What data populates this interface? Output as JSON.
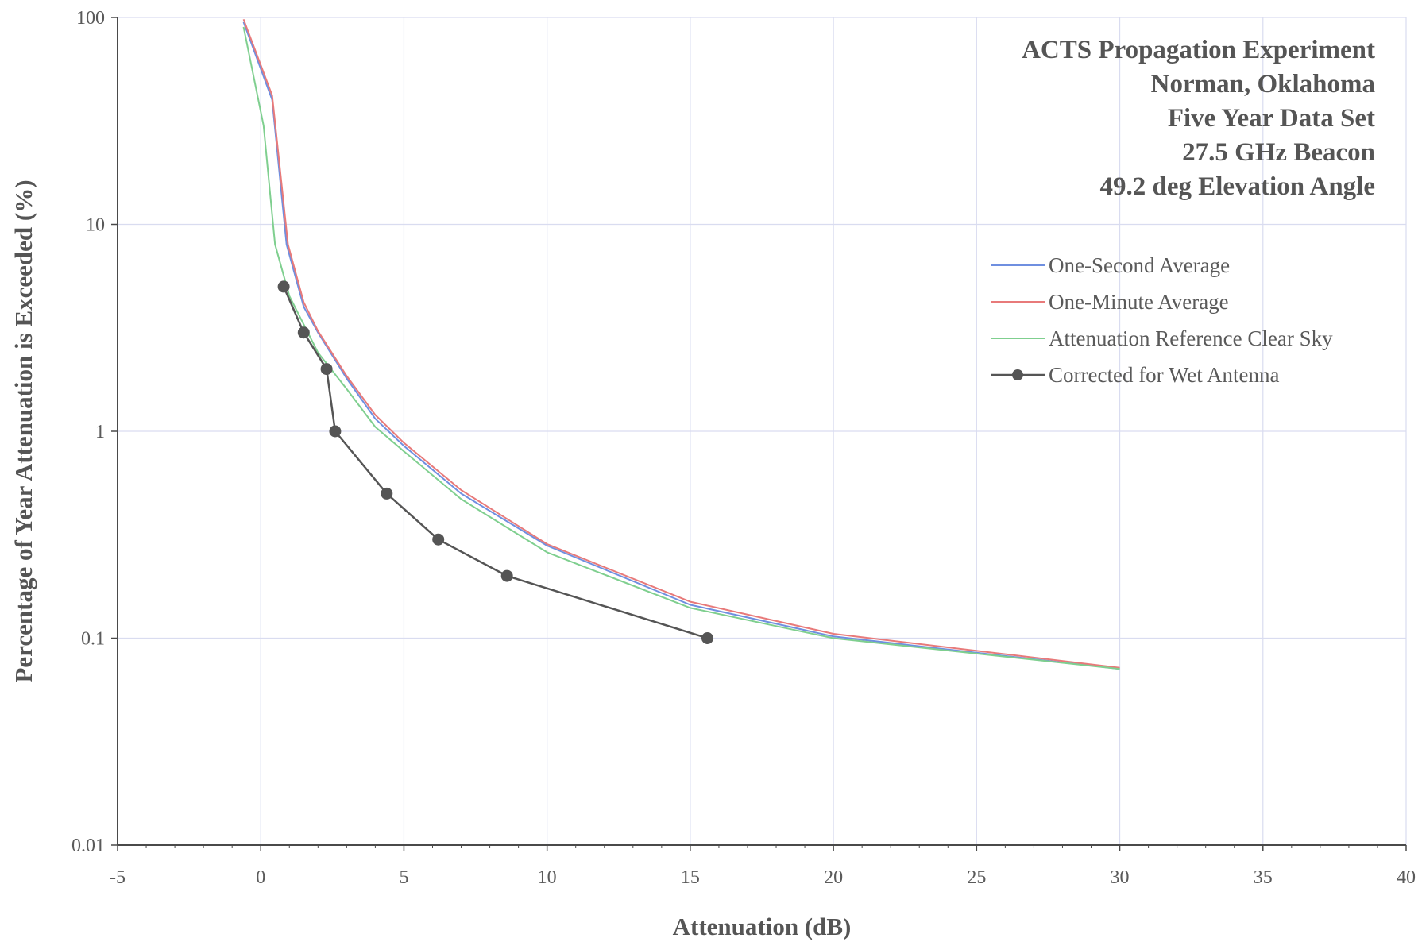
{
  "chart_data": {
    "type": "line",
    "title_lines": [
      "ACTS Propagation Experiment",
      "Norman, Oklahoma",
      "Five Year Data Set",
      "27.5 GHz Beacon",
      "49.2 deg Elevation Angle"
    ],
    "xlabel": "Attenuation (dB)",
    "ylabel": "Percentage of Year Attenuation is Exceeded (%)",
    "xlim": [
      -5,
      40
    ],
    "ylim": [
      0.01,
      100
    ],
    "yscale": "log",
    "x_ticks": [
      "-5",
      "0",
      "5",
      "10",
      "15",
      "20",
      "25",
      "30",
      "35",
      "40"
    ],
    "y_ticks": [
      "0.01",
      "0.1",
      "1",
      "10",
      "100"
    ],
    "grid": true,
    "legend_position": "upper-right",
    "series": [
      {
        "name": "One-Second Average",
        "color": "#6f8fe0",
        "marker": "none",
        "x": [
          -0.6,
          0.4,
          0.9,
          1.5,
          2,
          3,
          4,
          5,
          7,
          10,
          15,
          20,
          30
        ],
        "y": [
          95,
          40,
          8,
          4,
          3,
          1.8,
          1.15,
          0.85,
          0.5,
          0.28,
          0.145,
          0.102,
          0.071
        ]
      },
      {
        "name": "One-Minute Average",
        "color": "#e87a7a",
        "marker": "none",
        "x": [
          -0.6,
          0.4,
          0.95,
          1.5,
          2,
          3,
          4,
          5,
          7,
          10,
          15,
          20,
          30
        ],
        "y": [
          98,
          42,
          8,
          4.2,
          3.05,
          1.85,
          1.2,
          0.88,
          0.52,
          0.285,
          0.15,
          0.105,
          0.072
        ]
      },
      {
        "name": "Attenuation Reference Clear Sky",
        "color": "#7fcf8f",
        "marker": "none",
        "x": [
          -0.6,
          0.1,
          0.5,
          1,
          2,
          3,
          4,
          5,
          7,
          10,
          15,
          20,
          30
        ],
        "y": [
          90,
          30,
          8,
          4.5,
          2.4,
          1.6,
          1.05,
          0.8,
          0.47,
          0.26,
          0.14,
          0.1,
          0.071
        ]
      },
      {
        "name": "Corrected for Wet Antenna",
        "color": "#555555",
        "marker": "circle",
        "x": [
          0.8,
          1.5,
          2.3,
          2.6,
          4.4,
          6.2,
          8.6,
          15.6
        ],
        "y": [
          5,
          3,
          2,
          1,
          0.5,
          0.3,
          0.2,
          0.1
        ]
      }
    ]
  }
}
